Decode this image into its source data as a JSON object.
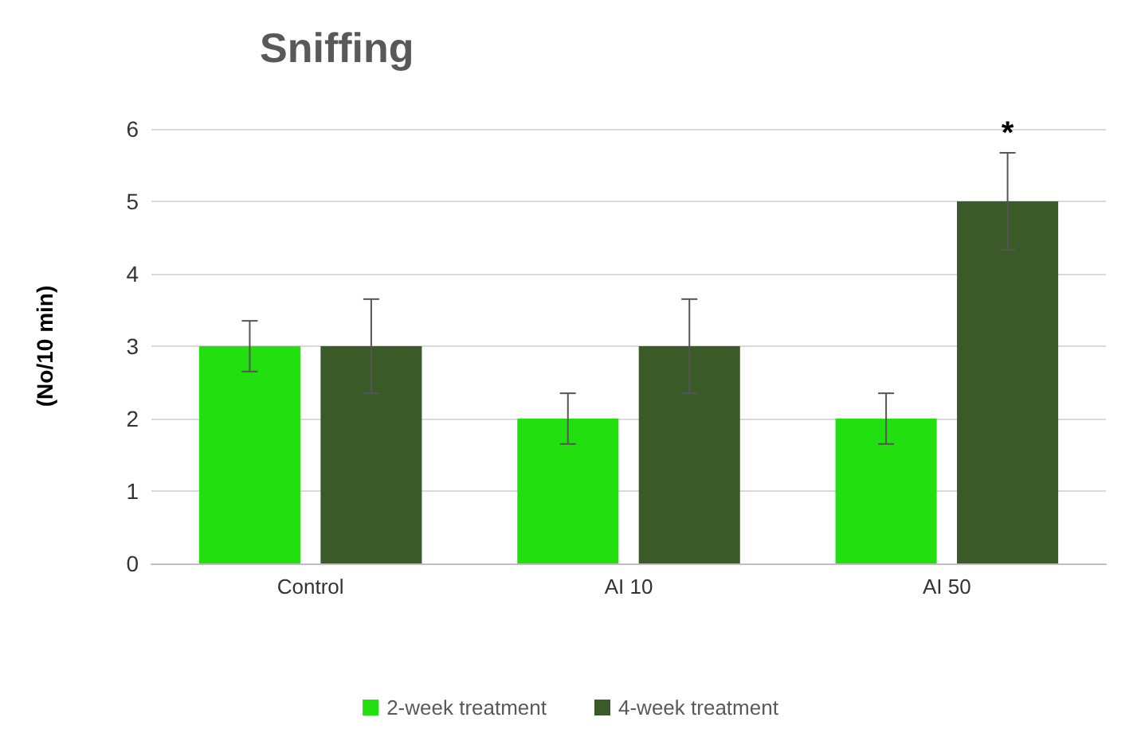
{
  "chart_data": {
    "type": "bar",
    "title": "Sniffing",
    "ylabel": "(No/10 min)",
    "categories": [
      "Control",
      "AI 10",
      "AI 50"
    ],
    "series": [
      {
        "name": "2-week treatment",
        "color": "#22e00f",
        "values": [
          3,
          2,
          2
        ],
        "errors": [
          0.35,
          0.35,
          0.35
        ]
      },
      {
        "name": "4-week treatment",
        "color": "#3a5a27",
        "values": [
          3,
          3,
          5
        ],
        "errors": [
          0.65,
          0.65,
          0.67
        ]
      }
    ],
    "ylim": [
      0,
      6
    ],
    "yticks": [
      0,
      1,
      2,
      3,
      4,
      5,
      6
    ],
    "grid": "y",
    "legend": "bottom",
    "annotations": [
      "*"
    ]
  }
}
